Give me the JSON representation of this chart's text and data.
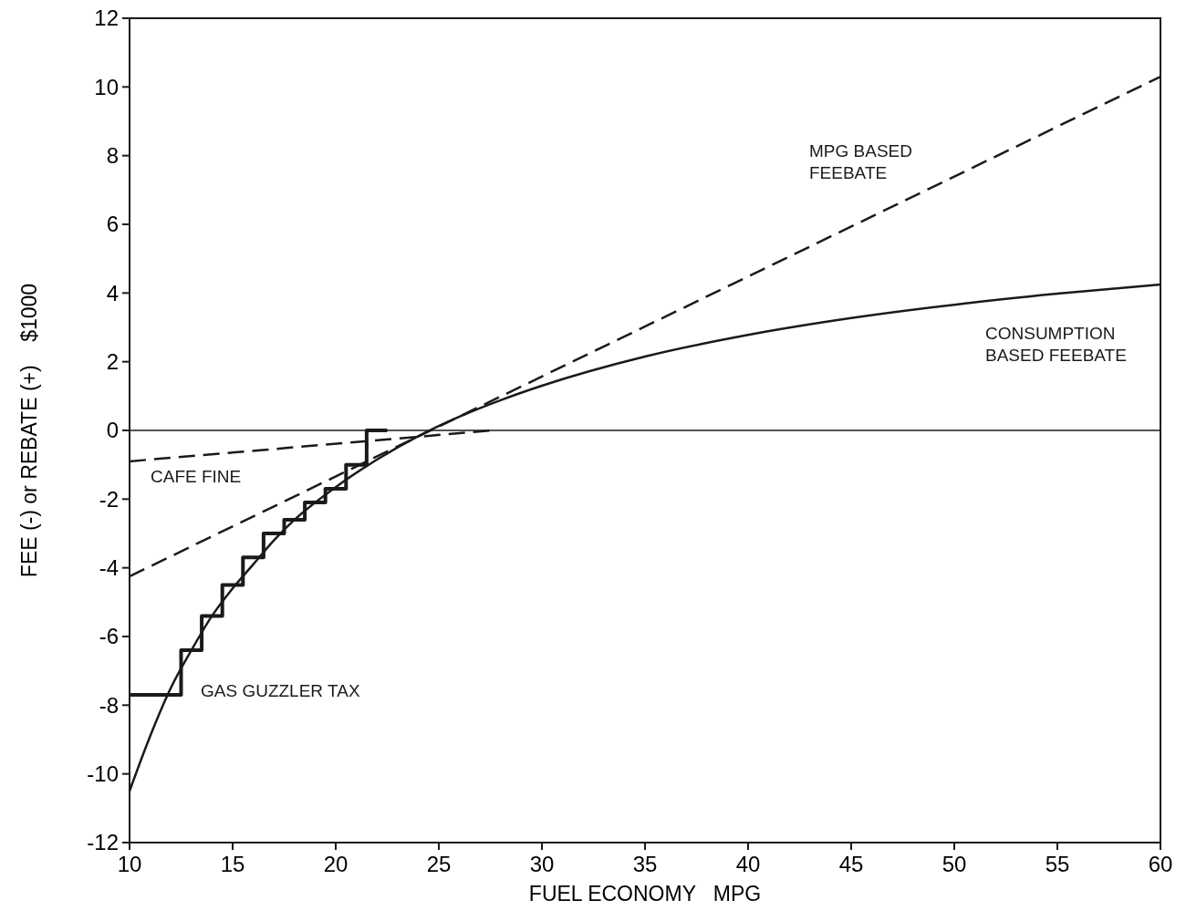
{
  "chart_data": {
    "type": "line",
    "xlabel": "FUEL ECONOMY   MPG",
    "ylabel": "FEE (-) or REBATE (+)    $1000",
    "xlim": [
      10,
      60
    ],
    "ylim": [
      -12,
      12
    ],
    "xticks": [
      10,
      15,
      20,
      25,
      30,
      35,
      40,
      45,
      50,
      55,
      60
    ],
    "yticks": [
      -12,
      -10,
      -8,
      -6,
      -4,
      -2,
      0,
      2,
      4,
      6,
      8,
      10,
      12
    ],
    "grid": false,
    "series": [
      {
        "name": "CONSUMPTION\nBASED FEEBATE",
        "line_style": "solid",
        "color": "#1a1a1a",
        "x": [
          10,
          11,
          12,
          13,
          14,
          15,
          16,
          17,
          18,
          20,
          22,
          24,
          26,
          28,
          30,
          35,
          40,
          45,
          50,
          55,
          60
        ],
        "values": [
          -10.5,
          -8.9,
          -7.5,
          -6.4,
          -5.4,
          -4.6,
          -3.9,
          -3.2,
          -2.6,
          -1.65,
          -0.85,
          -0.17,
          0.4,
          0.88,
          1.3,
          2.15,
          2.78,
          3.27,
          3.66,
          3.98,
          4.25
        ]
      },
      {
        "name": "MPG BASED\nFEEBATE",
        "line_style": "dashed",
        "color": "#1a1a1a",
        "x": [
          10,
          60
        ],
        "values": [
          -4.25,
          10.3
        ]
      },
      {
        "name": "CAFE FINE",
        "line_style": "dashed",
        "color": "#1a1a1a",
        "x": [
          10,
          27.6
        ],
        "values": [
          -0.9,
          0
        ]
      },
      {
        "name": "GAS GUZZLER TAX",
        "type": "step",
        "line_style": "solid",
        "color": "#1a1a1a",
        "x": [
          10,
          12.5,
          13.5,
          14.5,
          15.5,
          16.5,
          17.5,
          18.5,
          19.5,
          20.5,
          21.5,
          22.5
        ],
        "values": [
          -7.7,
          -6.4,
          -5.4,
          -4.5,
          -3.7,
          -3.0,
          -2.6,
          -2.1,
          -1.7,
          -1.0,
          0,
          0
        ]
      }
    ],
    "ref_lines": [
      {
        "axis": "y",
        "value": 0,
        "color": "#1a1a1a",
        "line_style": "solid"
      }
    ]
  }
}
